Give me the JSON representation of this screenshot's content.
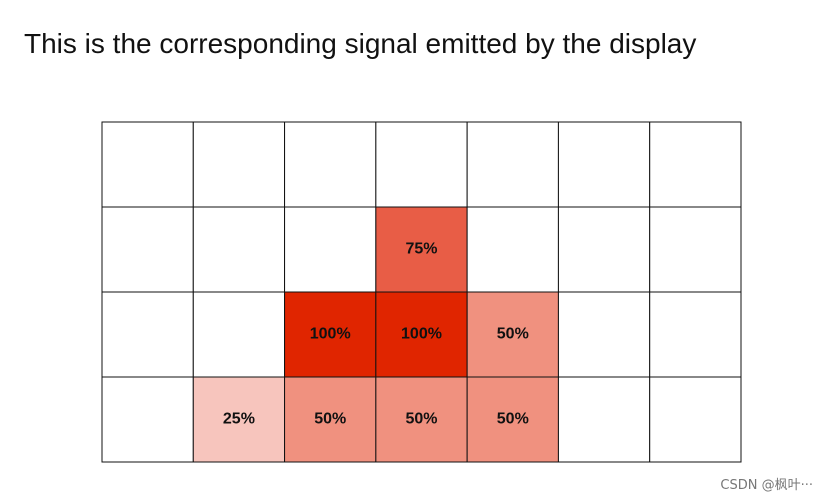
{
  "title": "This is the corresponding signal emitted by the display",
  "grid": {
    "rows": [
      [
        null,
        null,
        null,
        null,
        null,
        null,
        null
      ],
      [
        null,
        null,
        null,
        "75%",
        null,
        null,
        null
      ],
      [
        null,
        null,
        "100%",
        "100%",
        "50%",
        null,
        null
      ],
      [
        null,
        "25%",
        "50%",
        "50%",
        "50%",
        null,
        null
      ]
    ],
    "colors": {
      "25%": "#f7c5bd",
      "50%": "#f0917f",
      "75%": "#e85d46",
      "100%": "#e02500"
    }
  },
  "watermark": "CSDN @枫叶···"
}
